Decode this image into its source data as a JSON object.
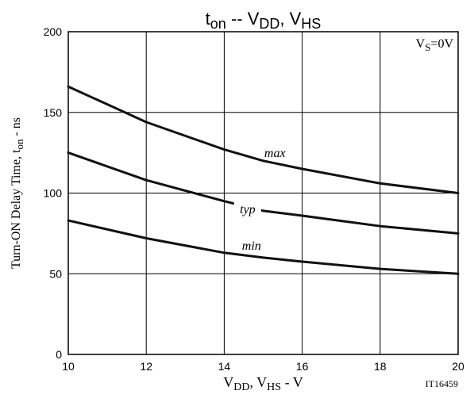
{
  "chart_data": {
    "type": "line",
    "title": {
      "parts": [
        {
          "text": "t",
          "sub": false
        },
        {
          "text": "on",
          "sub": true
        },
        {
          "text": " -- V",
          "sub": false
        },
        {
          "text": "DD",
          "sub": true
        },
        {
          "text": ", V",
          "sub": false
        },
        {
          "text": "HS",
          "sub": true
        }
      ]
    },
    "xlabel": {
      "parts": [
        {
          "text": "V",
          "sub": false
        },
        {
          "text": "DD",
          "sub": true
        },
        {
          "text": ", V",
          "sub": false
        },
        {
          "text": "HS",
          "sub": true
        },
        {
          "text": "  -  V",
          "sub": false
        }
      ]
    },
    "ylabel": {
      "parts": [
        {
          "text": "Turn-ON Delay Time, t",
          "sub": false
        },
        {
          "text": "on",
          "sub": true
        },
        {
          "text": "  -  ns",
          "sub": false
        }
      ]
    },
    "annotation": {
      "parts": [
        {
          "text": "V",
          "sub": false
        },
        {
          "text": "S",
          "sub": true
        },
        {
          "text": "=0V",
          "sub": false
        }
      ]
    },
    "figure_id": "IT16459",
    "xlim": [
      10,
      20
    ],
    "ylim": [
      0,
      200
    ],
    "xticks": [
      10,
      12,
      14,
      16,
      18,
      20
    ],
    "yticks": [
      0,
      50,
      100,
      150,
      200
    ],
    "grid": true,
    "series": [
      {
        "name": "max",
        "x": [
          10,
          12,
          14,
          15,
          16,
          18,
          20
        ],
        "y": [
          166,
          144,
          127,
          120,
          115,
          106,
          100
        ]
      },
      {
        "name": "typ",
        "x": [
          10,
          12,
          14,
          15,
          16,
          18,
          20
        ],
        "y": [
          125,
          108,
          95,
          89,
          86,
          79.5,
          75
        ]
      },
      {
        "name": "min",
        "x": [
          10,
          12,
          14,
          15,
          16,
          18,
          20
        ],
        "y": [
          83,
          72,
          63,
          60,
          57.5,
          53,
          50
        ]
      }
    ],
    "colors": {
      "line": "#111111",
      "grid": "#000000",
      "background": "#ffffff"
    }
  }
}
